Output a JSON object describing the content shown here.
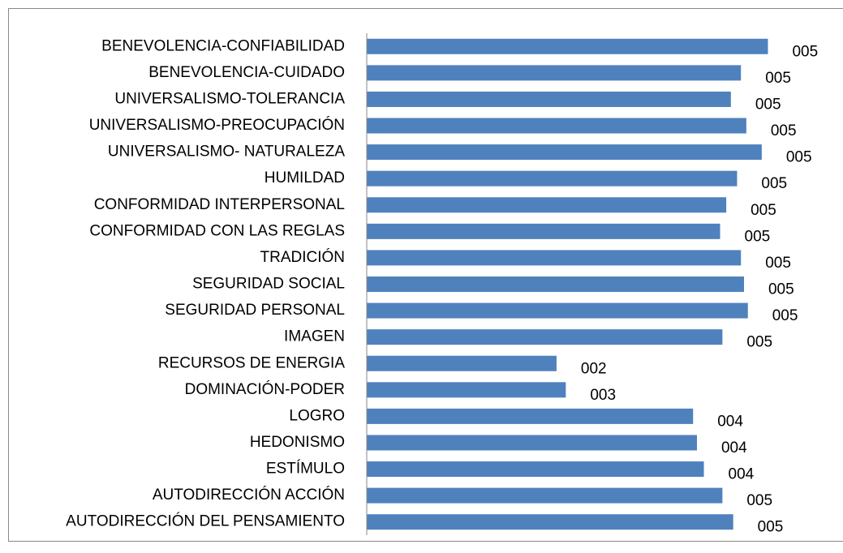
{
  "chart_data": {
    "type": "bar",
    "orientation": "horizontal",
    "color": "#4f81bd",
    "categories": [
      "BENEVOLENCIA-CONFIABILIDAD",
      "BENEVOLENCIA-CUIDADO",
      "UNIVERSALISMO-TOLERANCIA",
      "UNIVERSALISMO-PREOCUPACIÓN",
      "UNIVERSALISMO- NATURALEZA",
      "HUMILDAD",
      "CONFORMIDAD INTERPERSONAL",
      "CONFORMIDAD CON LAS REGLAS",
      "TRADICIÓN",
      "SEGURIDAD SOCIAL",
      "SEGURIDAD PERSONAL",
      "IMAGEN",
      "RECURSOS DE ENERGIA",
      "DOMINACIÓN-PODER",
      "LOGRO",
      "HEDONISMO",
      "ESTÍMULO",
      "AUTODIRECCIÓN ACCIÓN",
      "AUTODIRECCIÓN DEL PENSAMIENTO"
    ],
    "values": [
      5.2,
      4.85,
      4.72,
      4.92,
      5.12,
      4.8,
      4.66,
      4.58,
      4.85,
      4.89,
      4.94,
      4.61,
      2.46,
      2.58,
      4.23,
      4.28,
      4.37,
      4.61,
      4.75
    ],
    "value_labels": [
      "005",
      "005",
      "005",
      "005",
      "005",
      "005",
      "005",
      "005",
      "005",
      "005",
      "005",
      "005",
      "002",
      "003",
      "004",
      "004",
      "004",
      "005",
      "005"
    ],
    "xlim": [
      0,
      5.5
    ]
  }
}
